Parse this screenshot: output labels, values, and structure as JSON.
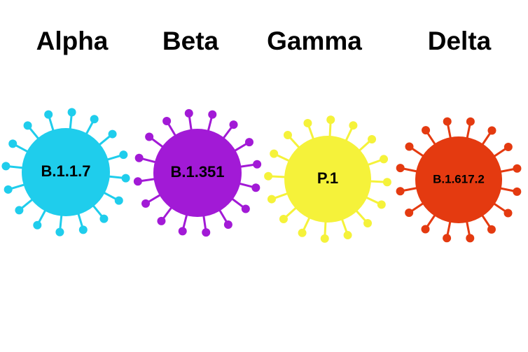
{
  "variants": [
    {
      "name": "Alpha",
      "lineage": "B.1.1.7"
    },
    {
      "name": "Beta",
      "lineage": "B.1.351"
    },
    {
      "name": "Gamma",
      "lineage": "P.1"
    },
    {
      "name": "Delta",
      "lineage": "B.1.617.2"
    }
  ]
}
